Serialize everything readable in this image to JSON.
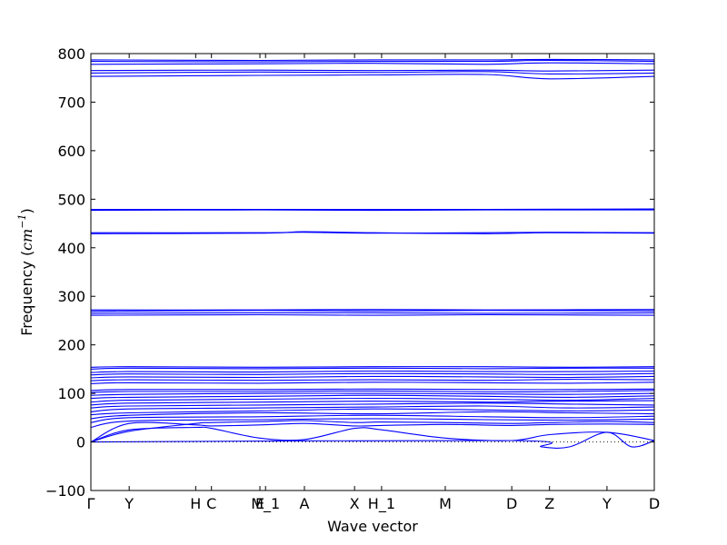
{
  "chart_data": {
    "type": "line",
    "xlabel": "Wave vector",
    "ylabel": "Frequency ($cm^{-1}$)",
    "ylabel_main": "Frequency (",
    "ylabel_unit": "cm",
    "ylabel_exp": "−1",
    "ylabel_close": ")",
    "ylim": [
      -100,
      800
    ],
    "yticks": [
      -100,
      0,
      100,
      200,
      300,
      400,
      500,
      600,
      700,
      800
    ],
    "xlim": [
      0,
      1
    ],
    "xticks": [
      {
        "label": "Γ",
        "x": 0.0
      },
      {
        "label": "Y",
        "x": 0.068
      },
      {
        "label": "H",
        "x": 0.186
      },
      {
        "label": "C",
        "x": 0.214
      },
      {
        "label": "E",
        "x": 0.3
      },
      {
        "label": "M_1",
        "x": 0.31
      },
      {
        "label": "A",
        "x": 0.379
      },
      {
        "label": "X",
        "x": 0.468
      },
      {
        "label": "H_1",
        "x": 0.516
      },
      {
        "label": "M",
        "x": 0.629
      },
      {
        "label": "D",
        "x": 0.747
      },
      {
        "label": "Z",
        "x": 0.814
      },
      {
        "label": "Y",
        "x": 0.916
      },
      {
        "label": "D",
        "x": 1.0
      }
    ],
    "zero_line": {
      "y": 0,
      "style": "dotted"
    },
    "line_color": "#0000ff",
    "series": [
      {
        "x": [
          0,
          0.068,
          0.186,
          0.214,
          0.3,
          0.379,
          0.468,
          0.516,
          0.629,
          0.747,
          0.814,
          0.916,
          1.0
        ],
        "values": [
          0,
          25,
          30,
          28,
          8,
          5,
          28,
          25,
          8,
          3,
          15,
          20,
          3
        ]
      },
      {
        "x": [
          0,
          0.068,
          0.186,
          0.214,
          0.3,
          0.379,
          0.468,
          0.516,
          0.629,
          0.747,
          0.814,
          0.916,
          1.0
        ],
        "values": [
          0,
          38,
          35,
          33,
          35,
          38,
          33,
          34,
          36,
          34,
          36,
          37,
          36
        ]
      },
      {
        "x": [
          0,
          0.068,
          0.186,
          0.214,
          0.3,
          0.379,
          0.468,
          0.516,
          0.629,
          0.747,
          0.814,
          0.916,
          1.0
        ],
        "values": [
          0,
          22,
          38,
          40,
          42,
          44,
          40,
          41,
          40,
          38,
          40,
          42,
          40
        ]
      },
      {
        "x": [
          0,
          0.747,
          0.8,
          0.85,
          0.916,
          0.96,
          1.0
        ],
        "values": [
          0,
          3,
          -10,
          -10,
          20,
          -10,
          3
        ]
      },
      {
        "x": [
          0,
          0.068,
          0.3,
          0.5,
          0.7,
          0.85,
          1.0
        ],
        "values": [
          30,
          43,
          46,
          48,
          46,
          45,
          47
        ]
      },
      {
        "x": [
          0,
          0.068,
          0.3,
          0.5,
          0.7,
          0.85,
          1.0
        ],
        "values": [
          40,
          50,
          52,
          55,
          52,
          50,
          53
        ]
      },
      {
        "x": [
          0,
          0.068,
          0.3,
          0.5,
          0.7,
          0.85,
          1.0
        ],
        "values": [
          48,
          55,
          60,
          58,
          62,
          60,
          58
        ]
      },
      {
        "x": [
          0,
          0.068,
          0.3,
          0.5,
          0.7,
          0.85,
          1.0
        ],
        "values": [
          56,
          60,
          64,
          68,
          66,
          64,
          66
        ]
      },
      {
        "x": [
          0,
          0.068,
          0.3,
          0.5,
          0.7,
          0.85,
          1.0
        ],
        "values": [
          62,
          68,
          70,
          72,
          74,
          70,
          72
        ]
      },
      {
        "x": [
          0,
          0.068,
          0.3,
          0.5,
          0.7,
          0.85,
          1.0
        ],
        "values": [
          70,
          74,
          76,
          78,
          80,
          78,
          76
        ]
      },
      {
        "x": [
          0,
          0.068,
          0.3,
          0.5,
          0.7,
          0.85,
          1.0
        ],
        "values": [
          76,
          80,
          82,
          84,
          82,
          84,
          85
        ]
      },
      {
        "x": [
          0,
          0.068,
          0.3,
          0.5,
          0.7,
          0.85,
          1.0
        ],
        "values": [
          82,
          86,
          88,
          90,
          88,
          86,
          90
        ]
      },
      {
        "x": [
          0,
          0.068,
          0.3,
          0.5,
          0.7,
          0.85,
          1.0
        ],
        "values": [
          90,
          92,
          94,
          96,
          94,
          92,
          95
        ]
      },
      {
        "x": [
          0,
          0.068,
          0.3,
          0.5,
          0.7,
          0.85,
          1.0
        ],
        "values": [
          96,
          98,
          100,
          100,
          99,
          98,
          100
        ]
      },
      {
        "x": [
          0,
          0.068,
          0.3,
          0.5,
          0.7,
          0.85,
          1.0
        ],
        "values": [
          102,
          104,
          104,
          105,
          103,
          104,
          106
        ]
      },
      {
        "x": [
          0,
          0.068,
          0.3,
          0.5,
          0.7,
          0.85,
          1.0
        ],
        "values": [
          106,
          108,
          108,
          109,
          108,
          108,
          109
        ]
      },
      {
        "x": [
          0,
          0.068,
          0.3,
          0.5,
          0.7,
          0.85,
          1.0
        ],
        "values": [
          120,
          122,
          121,
          123,
          122,
          121,
          123
        ]
      },
      {
        "x": [
          0,
          0.068,
          0.3,
          0.5,
          0.7,
          0.85,
          1.0
        ],
        "values": [
          126,
          128,
          127,
          128,
          127,
          129,
          128
        ]
      },
      {
        "x": [
          0,
          0.068,
          0.3,
          0.5,
          0.7,
          0.85,
          1.0
        ],
        "values": [
          132,
          134,
          133,
          135,
          134,
          133,
          135
        ]
      },
      {
        "x": [
          0,
          0.068,
          0.3,
          0.5,
          0.7,
          0.85,
          1.0
        ],
        "values": [
          138,
          140,
          139,
          141,
          140,
          139,
          141
        ]
      },
      {
        "x": [
          0,
          0.068,
          0.3,
          0.5,
          0.7,
          0.85,
          1.0
        ],
        "values": [
          143,
          145,
          144,
          146,
          145,
          145,
          146
        ]
      },
      {
        "x": [
          0,
          0.068,
          0.3,
          0.5,
          0.7,
          0.85,
          1.0
        ],
        "values": [
          150,
          152,
          151,
          152,
          151,
          152,
          152
        ]
      },
      {
        "x": [
          0,
          0.068,
          0.3,
          0.5,
          0.7,
          0.85,
          1.0
        ],
        "values": [
          154,
          155,
          154,
          155,
          155,
          154,
          155
        ]
      },
      {
        "x": [
          0,
          0.3,
          0.5,
          0.7,
          1.0
        ],
        "values": [
          261,
          262,
          261,
          262,
          261
        ]
      },
      {
        "x": [
          0,
          0.3,
          0.5,
          0.7,
          1.0
        ],
        "values": [
          265,
          266,
          266,
          265,
          266
        ]
      },
      {
        "x": [
          0,
          0.3,
          0.5,
          0.7,
          1.0
        ],
        "values": [
          269,
          271,
          270,
          271,
          270
        ]
      },
      {
        "x": [
          0,
          0.3,
          0.5,
          0.7,
          1.0
        ],
        "values": [
          272,
          272,
          273,
          272,
          273
        ]
      },
      {
        "x": [
          0,
          0.3,
          0.379,
          0.5,
          0.7,
          0.814,
          1.0
        ],
        "values": [
          429,
          430,
          433,
          431,
          429,
          431,
          430
        ]
      },
      {
        "x": [
          0,
          0.3,
          0.379,
          0.5,
          0.7,
          0.814,
          1.0
        ],
        "values": [
          431,
          431,
          432,
          430,
          431,
          432,
          431
        ]
      },
      {
        "x": [
          0,
          0.3,
          0.5,
          0.7,
          1.0
        ],
        "values": [
          477,
          478,
          477,
          478,
          478
        ]
      },
      {
        "x": [
          0,
          0.3,
          0.5,
          0.7,
          1.0
        ],
        "values": [
          479,
          479,
          479,
          479,
          480
        ]
      },
      {
        "x": [
          0,
          0.3,
          0.5,
          0.7,
          0.814,
          1.0
        ],
        "values": [
          753,
          755,
          756,
          757,
          748,
          753
        ]
      },
      {
        "x": [
          0,
          0.3,
          0.5,
          0.7,
          0.814,
          1.0
        ],
        "values": [
          760,
          762,
          761,
          763,
          758,
          760
        ]
      },
      {
        "x": [
          0,
          0.3,
          0.5,
          0.7,
          0.814,
          1.0
        ],
        "values": [
          765,
          766,
          765,
          766,
          764,
          766
        ]
      },
      {
        "x": [
          0,
          0.3,
          0.5,
          0.7,
          0.814,
          1.0
        ],
        "values": [
          778,
          779,
          780,
          778,
          781,
          779
        ]
      },
      {
        "x": [
          0,
          0.3,
          0.5,
          0.7,
          0.814,
          1.0
        ],
        "values": [
          784,
          783,
          784,
          784,
          786,
          784
        ]
      },
      {
        "x": [
          0,
          0.3,
          0.5,
          0.7,
          0.814,
          1.0
        ],
        "values": [
          787,
          786,
          787,
          787,
          788,
          787
        ]
      }
    ]
  }
}
